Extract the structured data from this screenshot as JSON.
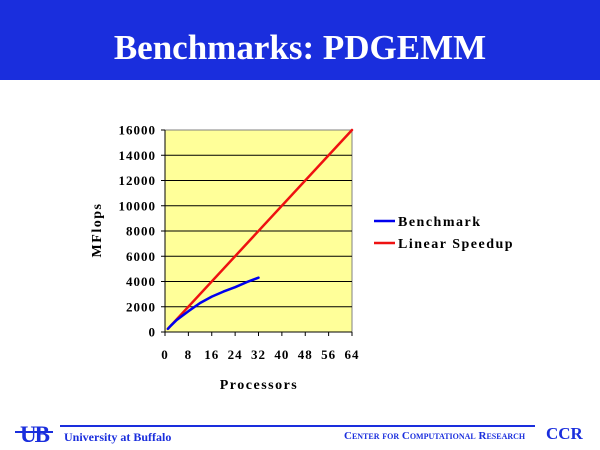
{
  "slide": {
    "title": "Benchmarks: PDGEMM"
  },
  "footer": {
    "university": "University at Buffalo",
    "center": "Center for Computational Research",
    "acronym": "CCR",
    "logo_text": "UB"
  },
  "colors": {
    "banner": "#1a2edd",
    "plot_background": "#ffff99",
    "benchmark": "#0000ee",
    "linear_speedup": "#ee1111"
  },
  "chart_data": {
    "type": "line",
    "xlabel": "Processors",
    "ylabel": "MFlops",
    "xlim": [
      0,
      64
    ],
    "ylim": [
      0,
      16000
    ],
    "x_ticks": [
      "0",
      "8",
      "16",
      "24",
      "32",
      "40",
      "48",
      "56",
      "64"
    ],
    "y_ticks": [
      "0",
      "2000",
      "4000",
      "6000",
      "8000",
      "10000",
      "12000",
      "14000",
      "16000"
    ],
    "grid": "horizontal",
    "legend_position": "right",
    "series": [
      {
        "name": "Benchmark",
        "color": "#0000ee",
        "points": [
          [
            1,
            250
          ],
          [
            2,
            500
          ],
          [
            4,
            950
          ],
          [
            6,
            1300
          ],
          [
            8,
            1650
          ],
          [
            12,
            2300
          ],
          [
            16,
            2800
          ],
          [
            20,
            3200
          ],
          [
            24,
            3550
          ],
          [
            28,
            3950
          ],
          [
            32,
            4300
          ]
        ]
      },
      {
        "name": "Linear Speedup",
        "color": "#ee1111",
        "points": [
          [
            1,
            250
          ],
          [
            64,
            16000
          ]
        ]
      }
    ]
  }
}
